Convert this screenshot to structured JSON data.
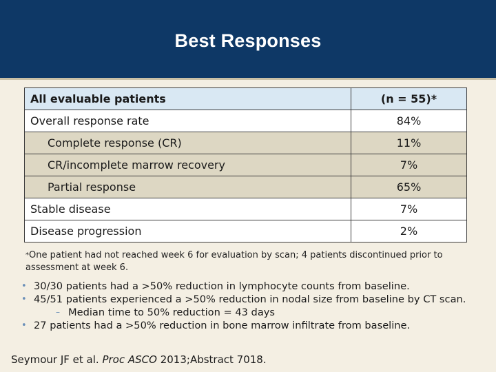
{
  "header": {
    "title": "Best Responses"
  },
  "table": {
    "header": {
      "label": "All evaluable patients",
      "value": "(n = 55)*"
    },
    "rows": [
      {
        "label": "Overall response rate",
        "value": "84%"
      },
      {
        "label": "Complete response (CR)",
        "value": "11%"
      },
      {
        "label": "CR/incomplete marrow recovery",
        "value": "7%"
      },
      {
        "label": "Partial response",
        "value": "65%"
      },
      {
        "label": "Stable disease",
        "value": "7%"
      },
      {
        "label": "Disease progression",
        "value": "2%"
      }
    ]
  },
  "footnote": {
    "marker": "*",
    "text": "One patient had not reached week 6 for evaluation by scan; 4 patients discontinued prior to assessment at week 6."
  },
  "bullets": [
    "30/30 patients had a >50% reduction in lymphocyte counts from baseline.",
    "45/51 patients experienced a >50% reduction in nodal size from baseline by CT scan.",
    "27 patients had a >50% reduction in bone marrow infiltrate from baseline."
  ],
  "sub_bullet": "Median time to 50% reduction = 43 days",
  "citation": {
    "prefix": "Seymour JF et al.",
    "journal": "Proc ASCO",
    "suffix": "2013;Abstract 7018."
  }
}
